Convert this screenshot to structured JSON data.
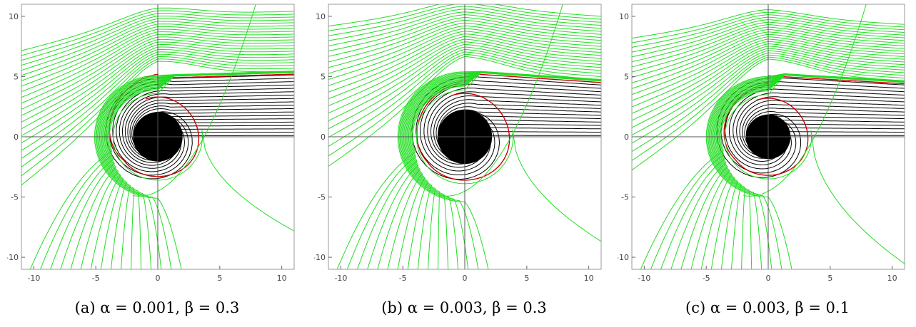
{
  "chart_data": [
    {
      "type": "line",
      "caption": "(a) α = 0.001, β = 0.3",
      "xlim": [
        -11,
        11
      ],
      "ylim": [
        -11,
        11
      ],
      "xticks": [
        -10,
        -5,
        0,
        5,
        10
      ],
      "yticks": [
        10,
        5,
        0,
        -5,
        -10
      ],
      "black_hole_radius": 2.0,
      "photon_sphere_radius": 3.3,
      "critical_impact": 5.2,
      "shear": 0.03,
      "upper_green_top_y": 10.4,
      "lower_tail_end_y": -8.1,
      "series_colors": {
        "green": "#22dd22",
        "black": "#000000",
        "red": "#cc0000"
      }
    },
    {
      "type": "line",
      "caption": "(b) α = 0.003, β = 0.3",
      "xlim": [
        -11,
        11
      ],
      "ylim": [
        -11,
        11
      ],
      "xticks": [
        -10,
        -5,
        0,
        5,
        10
      ],
      "yticks": [
        10,
        5,
        0,
        -5,
        -10
      ],
      "black_hole_radius": 2.2,
      "photon_sphere_radius": 3.6,
      "critical_impact": 4.5,
      "shear": -0.07,
      "upper_green_top_y": 10.0,
      "lower_tail_end_y": -9.0,
      "series_colors": {
        "green": "#22dd22",
        "black": "#000000",
        "red": "#cc0000"
      }
    },
    {
      "type": "line",
      "caption": "(c) α = 0.003, β = 0.1",
      "xlim": [
        -11,
        11
      ],
      "ylim": [
        -11,
        11
      ],
      "xticks": [
        -10,
        -5,
        0,
        5,
        10
      ],
      "yticks": [
        10,
        5,
        0,
        -5,
        -10
      ],
      "black_hole_radius": 1.8,
      "photon_sphere_radius": 3.2,
      "critical_impact": 4.4,
      "shear": -0.06,
      "upper_green_top_y": 9.3,
      "lower_tail_end_y": -10.9,
      "series_colors": {
        "green": "#22dd22",
        "black": "#000000",
        "red": "#cc0000"
      }
    }
  ]
}
